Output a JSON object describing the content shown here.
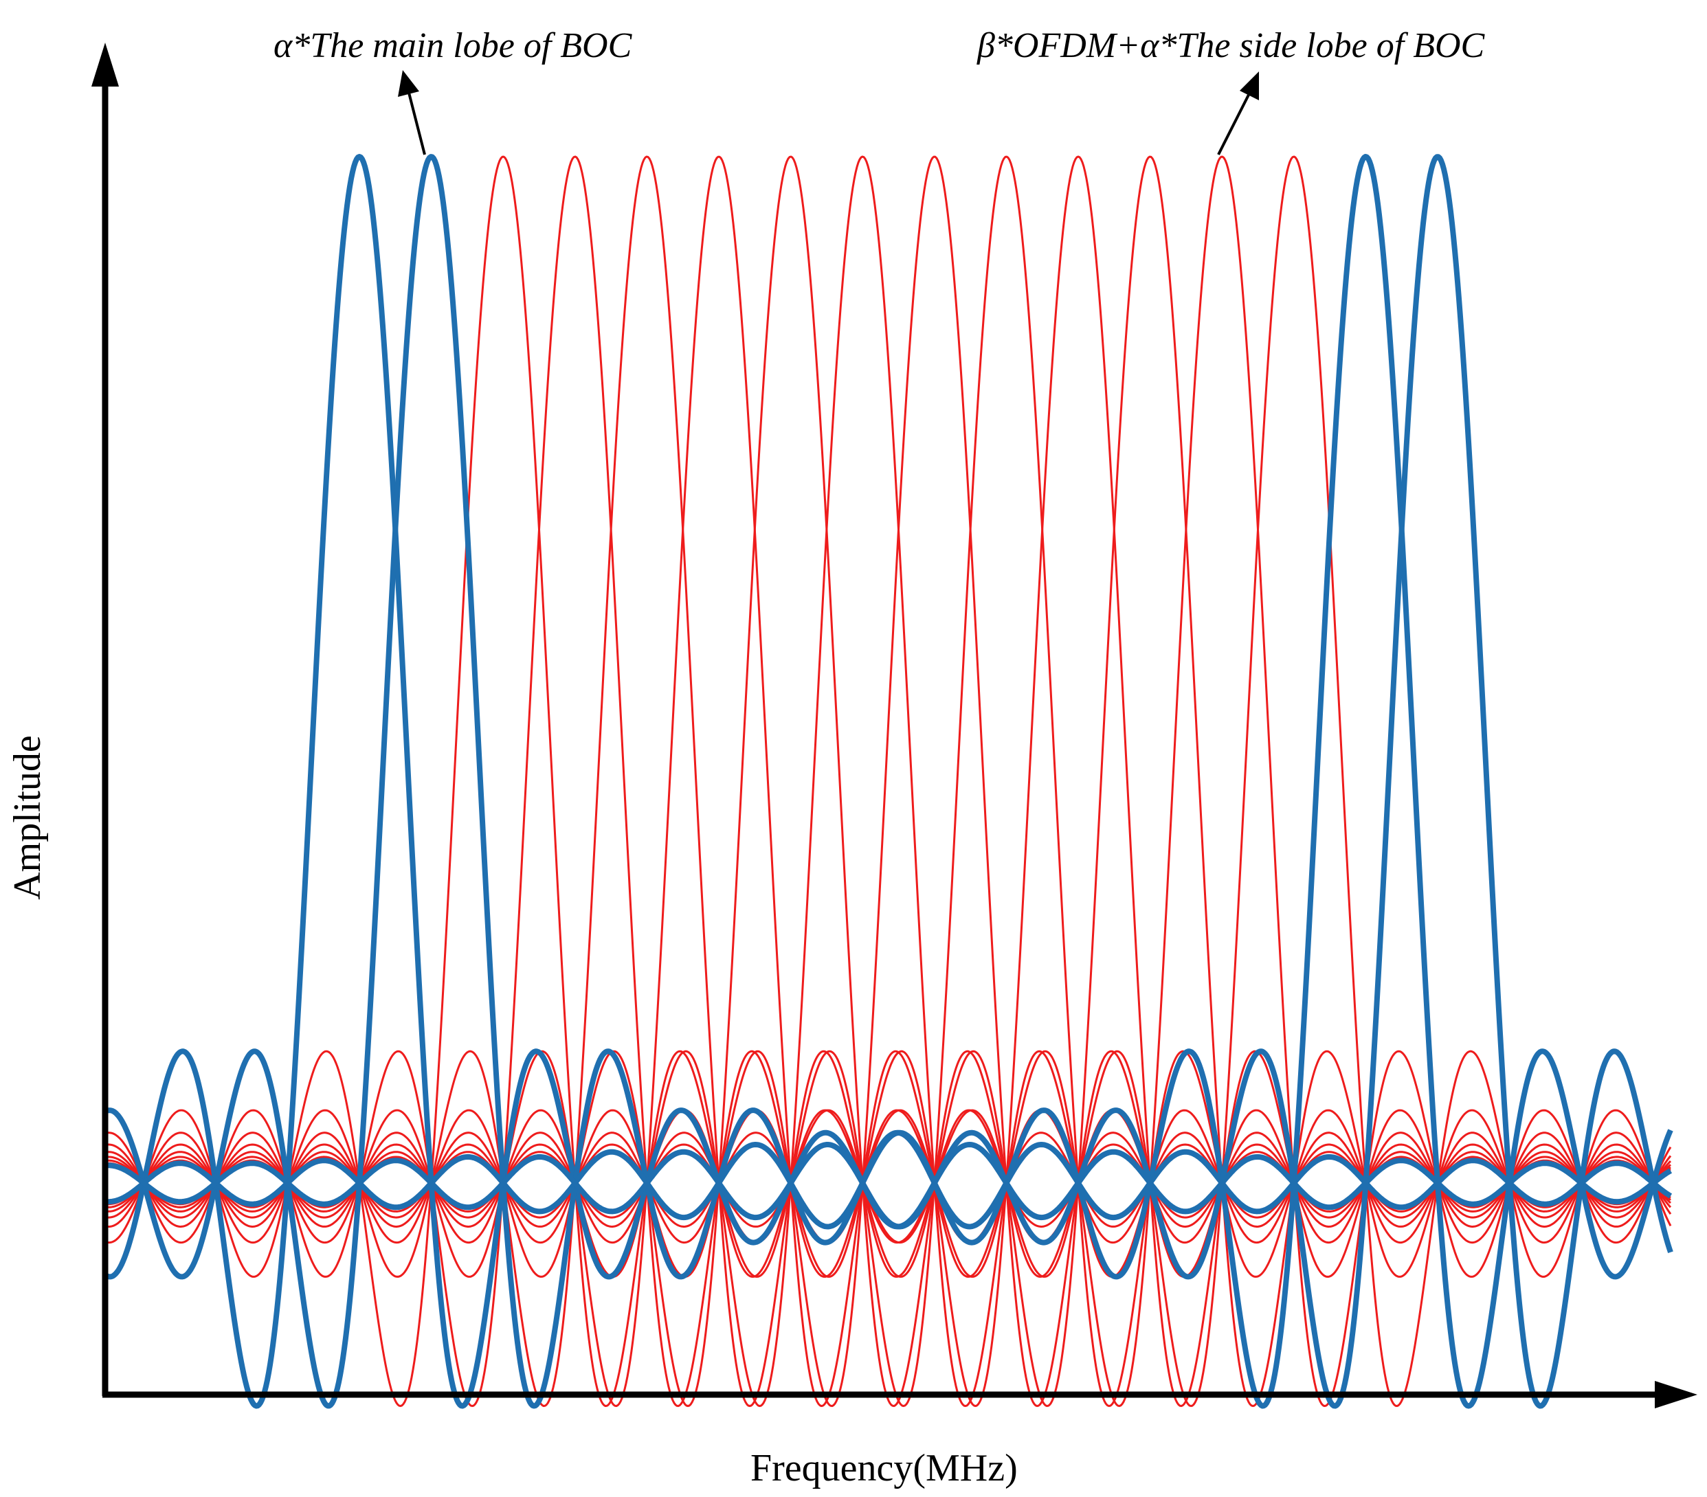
{
  "diagram": {
    "axes": {
      "x_label": "Frequency(MHz)",
      "y_label": "Amplitude"
    },
    "annotations": [
      {
        "id": "main-lobe",
        "text": "α*The main lobe of BOC"
      },
      {
        "id": "side-lobe",
        "text": "β*OFDM+α*The side lobe of BOC"
      }
    ],
    "colors": {
      "boc": "#1f6fb0",
      "ofdm": "#ee1c1c",
      "axis": "#000000"
    },
    "boc_main_lobe_peaks": [
      0,
      1,
      14,
      15
    ],
    "ofdm_subcarrier_peaks": [
      2,
      3,
      4,
      5,
      6,
      7,
      8,
      9,
      10,
      11,
      12,
      13
    ],
    "peak_spacing_units": 1,
    "side_lobe_spacing_units": 1
  }
}
